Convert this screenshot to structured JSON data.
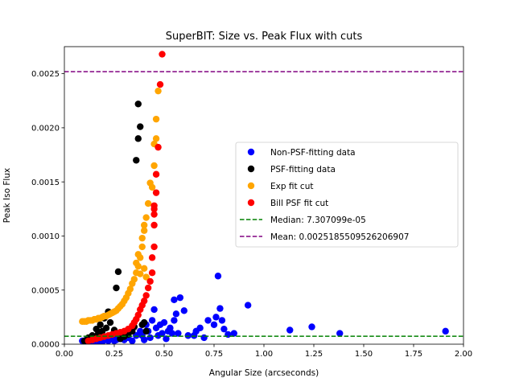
{
  "chart_data": {
    "type": "scatter",
    "title": "SuperBIT: Size vs. Peak Flux with cuts",
    "xlabel": "Angular Size (arcseconds)",
    "ylabel": "Peak Iso Flux",
    "xlim": [
      0.0,
      2.0
    ],
    "ylim": [
      0.0,
      0.00275
    ],
    "x_ticks": [
      "0.00",
      "0.25",
      "0.50",
      "0.75",
      "1.00",
      "1.25",
      "1.50",
      "1.75",
      "2.00"
    ],
    "y_ticks": [
      "0.0000",
      "0.0005",
      "0.0010",
      "0.0015",
      "0.0020",
      "0.0025"
    ],
    "x_tick_values": [
      0.0,
      0.25,
      0.5,
      0.75,
      1.0,
      1.25,
      1.5,
      1.75,
      2.0
    ],
    "y_tick_values": [
      0.0,
      0.0005,
      0.001,
      0.0015,
      0.002,
      0.0025
    ],
    "grid": false,
    "legend_position": "center-right",
    "series": [
      {
        "name": "Non-PSF-fitting data",
        "kind": "scatter",
        "color": "#0000ff",
        "points": [
          [
            0.09,
            3e-05
          ],
          [
            0.1,
            2e-05
          ],
          [
            0.11,
            4e-05
          ],
          [
            0.12,
            2e-05
          ],
          [
            0.13,
            3e-05
          ],
          [
            0.14,
            1e-05
          ],
          [
            0.15,
            4e-05
          ],
          [
            0.16,
            2e-05
          ],
          [
            0.17,
            5e-05
          ],
          [
            0.18,
            3e-05
          ],
          [
            0.19,
            2e-05
          ],
          [
            0.2,
            4e-05
          ],
          [
            0.21,
            6e-05
          ],
          [
            0.22,
            3e-05
          ],
          [
            0.23,
            5e-05
          ],
          [
            0.24,
            7e-05
          ],
          [
            0.25,
            3e-05
          ],
          [
            0.26,
            4e-05
          ],
          [
            0.27,
            6e-05
          ],
          [
            0.28,
            5e-05
          ],
          [
            0.3,
            4e-05
          ],
          [
            0.32,
            6e-05
          ],
          [
            0.34,
            3e-05
          ],
          [
            0.36,
            8e-05
          ],
          [
            0.38,
            0.00012
          ],
          [
            0.39,
            8e-05
          ],
          [
            0.4,
            4e-05
          ],
          [
            0.41,
            0.00018
          ],
          [
            0.42,
            0.00012
          ],
          [
            0.43,
            6e-05
          ],
          [
            0.44,
            0.00022
          ],
          [
            0.45,
            0.00032
          ],
          [
            0.46,
            0.00015
          ],
          [
            0.47,
            8e-05
          ],
          [
            0.48,
            0.00018
          ],
          [
            0.49,
            0.0001
          ],
          [
            0.5,
            0.0002
          ],
          [
            0.51,
            5e-05
          ],
          [
            0.52,
            0.00012
          ],
          [
            0.53,
            0.00015
          ],
          [
            0.54,
            0.0001
          ],
          [
            0.55,
            0.00022
          ],
          [
            0.55,
            0.00041
          ],
          [
            0.56,
            0.00028
          ],
          [
            0.57,
            0.0001
          ],
          [
            0.58,
            0.00043
          ],
          [
            0.6,
            0.00031
          ],
          [
            0.62,
            8e-05
          ],
          [
            0.65,
            8e-05
          ],
          [
            0.66,
            0.00012
          ],
          [
            0.68,
            0.00015
          ],
          [
            0.7,
            6e-05
          ],
          [
            0.72,
            0.00022
          ],
          [
            0.75,
            0.00018
          ],
          [
            0.76,
            0.00025
          ],
          [
            0.77,
            0.00063
          ],
          [
            0.78,
            0.00033
          ],
          [
            0.79,
            0.00022
          ],
          [
            0.8,
            0.00014
          ],
          [
            0.82,
            9e-05
          ],
          [
            0.85,
            0.0001
          ],
          [
            0.92,
            0.00036
          ],
          [
            1.13,
            0.00013
          ],
          [
            1.24,
            0.00016
          ],
          [
            1.38,
            0.0001
          ],
          [
            1.91,
            0.00012
          ]
        ]
      },
      {
        "name": "PSF-fitting data",
        "kind": "scatter",
        "color": "#000000",
        "points": [
          [
            0.1,
            3e-05
          ],
          [
            0.12,
            6e-05
          ],
          [
            0.14,
            8e-05
          ],
          [
            0.15,
            5e-05
          ],
          [
            0.16,
            0.00014
          ],
          [
            0.17,
            0.0001
          ],
          [
            0.18,
            0.00018
          ],
          [
            0.19,
            0.00012
          ],
          [
            0.2,
            0.00024
          ],
          [
            0.21,
            0.00015
          ],
          [
            0.22,
            0.0003
          ],
          [
            0.23,
            0.0002
          ],
          [
            0.24,
            9e-05
          ],
          [
            0.25,
            0.00013
          ],
          [
            0.26,
            0.00052
          ],
          [
            0.27,
            0.00067
          ],
          [
            0.28,
            5e-05
          ],
          [
            0.3,
            7e-05
          ],
          [
            0.32,
            9e-05
          ],
          [
            0.34,
            0.00012
          ],
          [
            0.35,
            0.00016
          ],
          [
            0.36,
            0.0017
          ],
          [
            0.37,
            0.0019
          ],
          [
            0.37,
            0.00222
          ],
          [
            0.38,
            0.00201
          ],
          [
            0.39,
            0.00018
          ],
          [
            0.4,
            0.0002
          ],
          [
            0.41,
            0.00012
          ]
        ]
      },
      {
        "name": "Exp fit cut",
        "kind": "scatter",
        "color": "#ffa500",
        "points": [
          [
            0.09,
            0.00021
          ],
          [
            0.1,
            0.00021
          ],
          [
            0.11,
            0.00021
          ],
          [
            0.12,
            0.00022
          ],
          [
            0.13,
            0.00022
          ],
          [
            0.14,
            0.00022
          ],
          [
            0.15,
            0.00023
          ],
          [
            0.16,
            0.00023
          ],
          [
            0.17,
            0.00024
          ],
          [
            0.18,
            0.00024
          ],
          [
            0.19,
            0.00025
          ],
          [
            0.2,
            0.00026
          ],
          [
            0.21,
            0.00026
          ],
          [
            0.22,
            0.00027
          ],
          [
            0.23,
            0.00028
          ],
          [
            0.24,
            0.00029
          ],
          [
            0.25,
            0.0003
          ],
          [
            0.26,
            0.00031
          ],
          [
            0.27,
            0.00033
          ],
          [
            0.28,
            0.00035
          ],
          [
            0.29,
            0.00037
          ],
          [
            0.3,
            0.0004
          ],
          [
            0.31,
            0.00043
          ],
          [
            0.32,
            0.00047
          ],
          [
            0.33,
            0.00051
          ],
          [
            0.34,
            0.00056
          ],
          [
            0.35,
            0.0006
          ],
          [
            0.36,
            0.00066
          ],
          [
            0.37,
            0.00072
          ],
          [
            0.38,
            0.0008
          ],
          [
            0.39,
            0.0009
          ],
          [
            0.39,
            0.00098
          ],
          [
            0.4,
            0.00105
          ],
          [
            0.4,
            0.0011
          ],
          [
            0.41,
            0.00117
          ],
          [
            0.42,
            0.0013
          ],
          [
            0.43,
            0.00149
          ],
          [
            0.44,
            0.00145
          ],
          [
            0.45,
            0.00165
          ],
          [
            0.45,
            0.00185
          ],
          [
            0.46,
            0.0019
          ],
          [
            0.46,
            0.00208
          ],
          [
            0.47,
            0.00234
          ],
          [
            0.36,
            0.00075
          ],
          [
            0.37,
            0.00083
          ],
          [
            0.38,
            0.00065
          ],
          [
            0.4,
            0.0007
          ],
          [
            0.41,
            0.00062
          ]
        ]
      },
      {
        "name": "Bill PSF fit cut",
        "kind": "scatter",
        "color": "#ff0000",
        "points": [
          [
            0.12,
            3e-05
          ],
          [
            0.14,
            4e-05
          ],
          [
            0.16,
            5e-05
          ],
          [
            0.18,
            6e-05
          ],
          [
            0.2,
            7e-05
          ],
          [
            0.22,
            8e-05
          ],
          [
            0.24,
            9e-05
          ],
          [
            0.26,
            0.0001
          ],
          [
            0.28,
            0.00011
          ],
          [
            0.3,
            0.00012
          ],
          [
            0.32,
            0.00014
          ],
          [
            0.34,
            0.00017
          ],
          [
            0.35,
            0.0002
          ],
          [
            0.36,
            0.00023
          ],
          [
            0.37,
            0.00027
          ],
          [
            0.38,
            0.00032
          ],
          [
            0.39,
            0.00036
          ],
          [
            0.4,
            0.0004
          ],
          [
            0.41,
            0.00045
          ],
          [
            0.42,
            0.00052
          ],
          [
            0.43,
            0.00058
          ],
          [
            0.44,
            0.00066
          ],
          [
            0.44,
            0.0008
          ],
          [
            0.45,
            0.0009
          ],
          [
            0.45,
            0.0011
          ],
          [
            0.45,
            0.0012
          ],
          [
            0.45,
            0.00125
          ],
          [
            0.45,
            0.00128
          ],
          [
            0.46,
            0.0014
          ],
          [
            0.46,
            0.00157
          ],
          [
            0.47,
            0.00182
          ],
          [
            0.48,
            0.0024
          ],
          [
            0.49,
            0.00268
          ]
        ]
      }
    ],
    "reference_lines": [
      {
        "name": "Median: 7.307099e-05",
        "kind": "hline",
        "value": 7.307099e-05,
        "color": "#008000",
        "dash": "dashed"
      },
      {
        "name": "Mean: 0.0025185509526206907",
        "kind": "hline",
        "value": 0.0025185509526206907,
        "color": "#800080",
        "dash": "dashed"
      }
    ]
  }
}
